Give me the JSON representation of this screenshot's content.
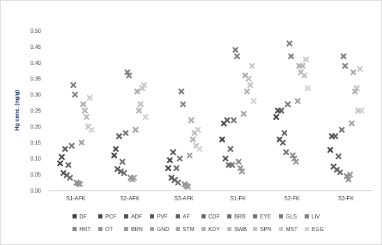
{
  "chart_data": {
    "type": "scatter",
    "title": "",
    "xlabel": "",
    "ylabel": "Hg conc. (ng/g)",
    "ylim": [
      0,
      0.5
    ],
    "yticks": [
      "0.00",
      "0.05",
      "0.10",
      "0.15",
      "0.20",
      "0.25",
      "0.30",
      "0.35",
      "0.40",
      "0.45",
      "0.50"
    ],
    "categories": [
      "S1-AFK",
      "S2-AFK",
      "S3-AFK",
      "S1-FK",
      "S2-FK",
      "S3-FK"
    ],
    "grid": false,
    "marker": "x",
    "legend_position": "bottom",
    "series": [
      {
        "name": "DF",
        "color": "#404040",
        "values": [
          0.085,
          0.11,
          0.07,
          0.16,
          0.23,
          0.127
        ]
      },
      {
        "name": "PCF",
        "color": "#484848",
        "values": [
          0.105,
          0.13,
          0.095,
          0.21,
          0.25,
          0.17
        ]
      },
      {
        "name": "ADF",
        "color": "#505050",
        "values": [
          0.055,
          0.067,
          0.04,
          0.1,
          0.16,
          0.075
        ]
      },
      {
        "name": "PVF",
        "color": "#585858",
        "values": [
          0.13,
          0.17,
          0.12,
          0.22,
          0.25,
          0.17
        ]
      },
      {
        "name": "AF",
        "color": "#606060",
        "values": [
          0.048,
          0.06,
          0.033,
          0.08,
          0.15,
          0.065
        ]
      },
      {
        "name": "CDF",
        "color": "#686868",
        "values": [
          0.08,
          0.09,
          0.07,
          0.13,
          0.18,
          0.107
        ]
      },
      {
        "name": "BRB",
        "color": "#6e6e6e",
        "values": [
          0.04,
          0.055,
          0.025,
          0.08,
          0.12,
          0.057
        ]
      },
      {
        "name": "EYE",
        "color": "#747474",
        "values": [
          0.14,
          0.18,
          0.1,
          0.22,
          0.27,
          0.19
        ]
      },
      {
        "name": "GLS",
        "color": "#7a7a7a",
        "values": [
          0.33,
          0.37,
          0.31,
          0.44,
          0.46,
          0.42
        ]
      },
      {
        "name": "LIV",
        "color": "#808080",
        "values": [
          0.3,
          0.36,
          0.27,
          0.42,
          0.42,
          0.39
        ]
      },
      {
        "name": "HRT",
        "color": "#888888",
        "values": [
          0.025,
          0.04,
          0.02,
          0.09,
          0.11,
          0.045
        ]
      },
      {
        "name": "OT",
        "color": "#909090",
        "values": [
          0.022,
          0.035,
          0.015,
          0.07,
          0.1,
          0.035
        ]
      },
      {
        "name": "BRN",
        "color": "#989898",
        "values": [
          0.02,
          0.04,
          0.012,
          0.06,
          0.09,
          0.05
        ]
      },
      {
        "name": "GND",
        "color": "#a0a0a0",
        "values": [
          0.15,
          0.19,
          0.11,
          0.24,
          0.28,
          0.21
        ]
      },
      {
        "name": "STM",
        "color": "#a8a8a8",
        "values": [
          0.27,
          0.31,
          0.22,
          0.36,
          0.39,
          0.37
        ]
      },
      {
        "name": "KDY",
        "color": "#b0b0b0",
        "values": [
          0.25,
          0.25,
          0.16,
          0.31,
          0.37,
          0.31
        ]
      },
      {
        "name": "SWB",
        "color": "#b8b8b8",
        "values": [
          0.23,
          0.27,
          0.18,
          0.35,
          0.39,
          0.32
        ]
      },
      {
        "name": "SPN",
        "color": "#c0c0c0",
        "values": [
          0.2,
          0.32,
          0.14,
          0.33,
          0.36,
          0.25
        ]
      },
      {
        "name": "MST",
        "color": "#c8c8c8",
        "values": [
          0.29,
          0.33,
          0.19,
          0.39,
          0.41,
          0.38
        ]
      },
      {
        "name": "EGG",
        "color": "#d0d0d0",
        "values": [
          0.19,
          0.23,
          0.13,
          0.28,
          0.32,
          0.25
        ]
      }
    ]
  }
}
